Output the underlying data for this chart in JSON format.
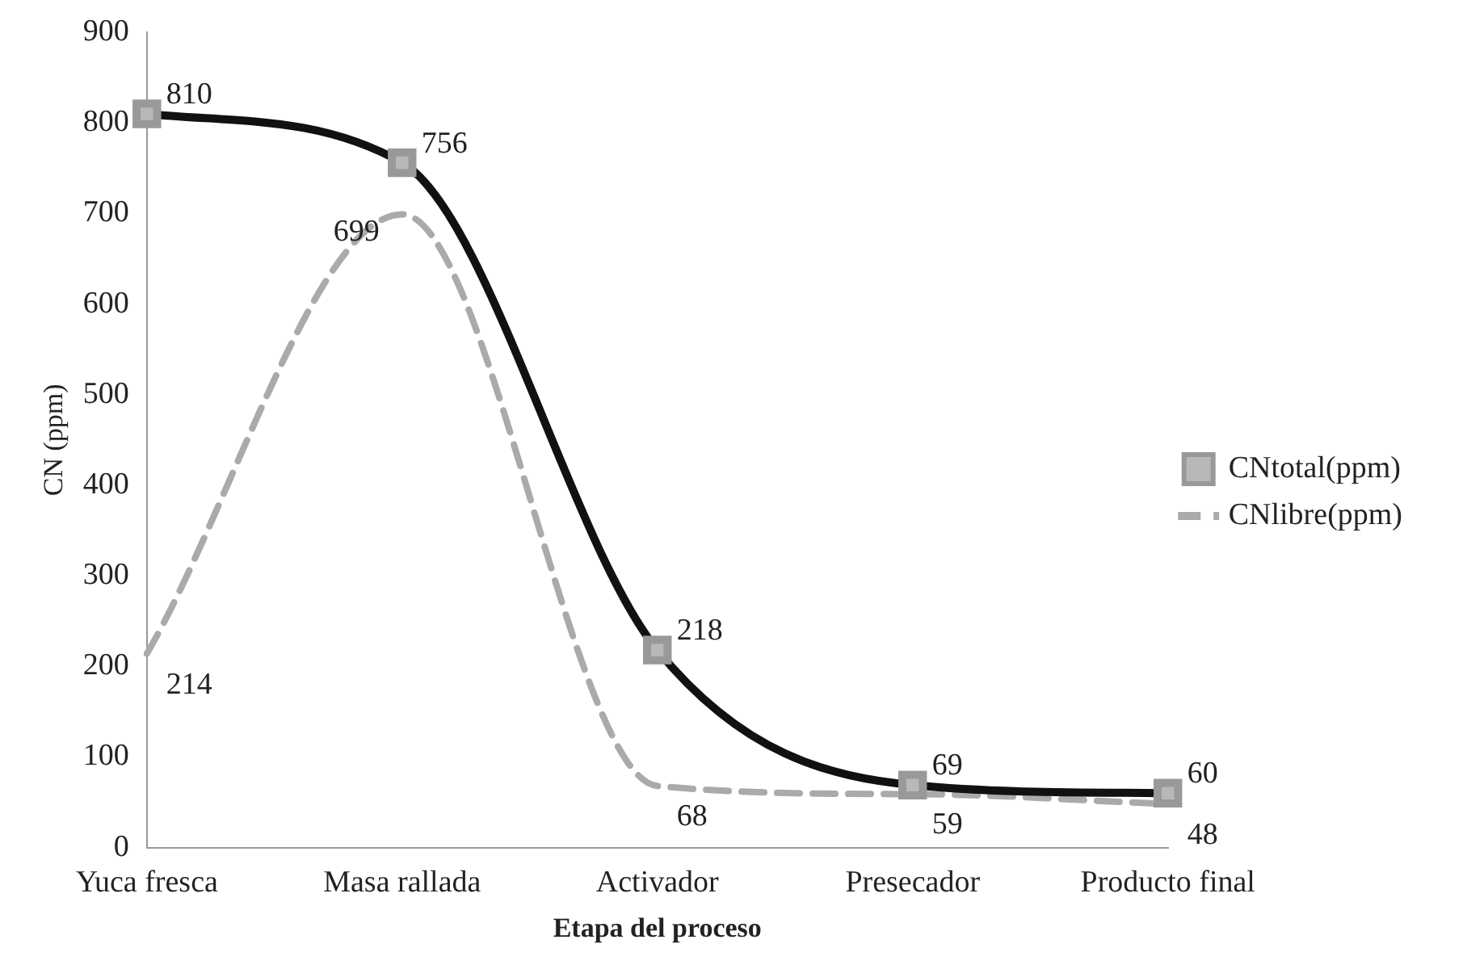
{
  "chart_data": {
    "type": "line",
    "xlabel": "Etapa del proceso",
    "ylabel": "CN (ppm)",
    "categories": [
      "Yuca fresca",
      "Masa rallada",
      "Activador",
      "Presecador",
      "Producto final"
    ],
    "series": [
      {
        "name": "CNtotal(ppm)",
        "color": "#111111",
        "values": [
          810,
          756,
          218,
          69,
          60
        ],
        "marker": "square",
        "line_style": "solid"
      },
      {
        "name": "CNlibre(ppm)",
        "color": "#aaaaaa",
        "values": [
          214,
          699,
          68,
          59,
          48
        ],
        "marker": "none",
        "line_style": "dashed"
      }
    ],
    "ylim": [
      0,
      900
    ],
    "yticks": [
      0,
      100,
      200,
      300,
      400,
      500,
      600,
      700,
      800,
      900
    ],
    "grid": false,
    "legend": "right",
    "data_labels": true
  }
}
